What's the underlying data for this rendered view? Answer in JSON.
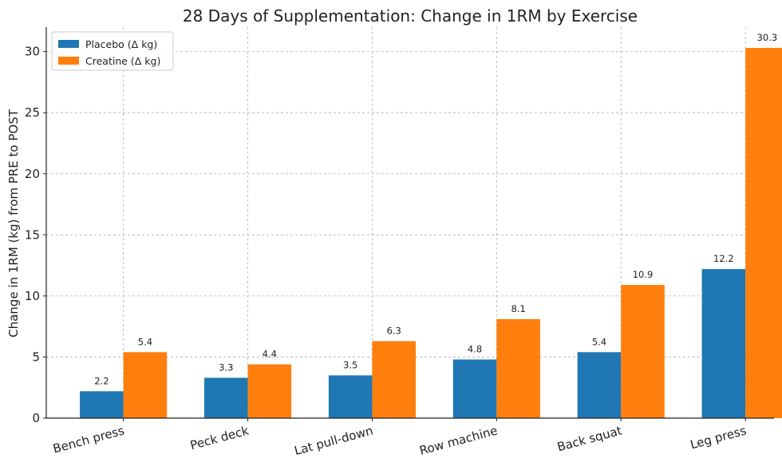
{
  "chart_data": {
    "type": "bar",
    "title": "28 Days of Supplementation: Change in 1RM by Exercise",
    "xlabel": "",
    "ylabel": "Change in 1RM (kg) from PRE to POST",
    "ylim": [
      0,
      32
    ],
    "yticks": [
      0,
      5,
      10,
      15,
      20,
      25,
      30
    ],
    "grid": true,
    "legend_position": "top-left",
    "categories": [
      "Bench press",
      "Peck deck",
      "Lat pull-down",
      "Row machine",
      "Back squat",
      "Leg press"
    ],
    "series": [
      {
        "name": "Placebo (Δ kg)",
        "color": "#1f77b4",
        "values": [
          2.2,
          3.3,
          3.5,
          4.8,
          5.4,
          12.2
        ]
      },
      {
        "name": "Creatine (Δ kg)",
        "color": "#ff7f0e",
        "values": [
          5.4,
          4.4,
          6.3,
          8.1,
          10.9,
          30.3
        ]
      }
    ]
  }
}
